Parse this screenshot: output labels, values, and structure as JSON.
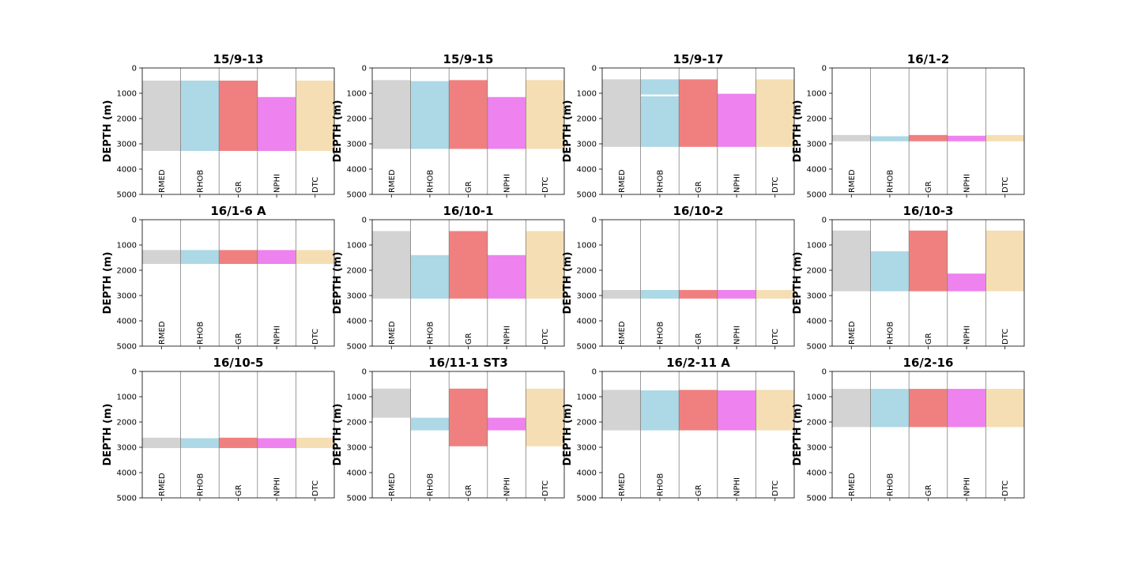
{
  "chart_data": {
    "type": "bar",
    "ylabel": "DEPTH (m)",
    "ylim": [
      5000,
      0
    ],
    "yticks": [
      0,
      1000,
      2000,
      3000,
      4000,
      5000
    ],
    "curves": [
      "RMED",
      "RHOB",
      "GR",
      "NPHI",
      "DTC"
    ],
    "colors": {
      "RMED": "#d3d3d3",
      "RHOB": "#add8e6",
      "GR": "#f08080",
      "NPHI": "#ee82ee",
      "DTC": "#f5deb3"
    },
    "wells": [
      {
        "title": "15/9-13",
        "ranges": {
          "RMED": [
            [
              500,
              3280
            ]
          ],
          "RHOB": [
            [
              500,
              3280
            ]
          ],
          "GR": [
            [
              500,
              3280
            ]
          ],
          "NPHI": [
            [
              1150,
              3280
            ]
          ],
          "DTC": [
            [
              500,
              3280
            ]
          ]
        }
      },
      {
        "title": "15/9-15",
        "ranges": {
          "RMED": [
            [
              480,
              3200
            ]
          ],
          "RHOB": [
            [
              520,
              3200
            ]
          ],
          "GR": [
            [
              480,
              3200
            ]
          ],
          "NPHI": [
            [
              1150,
              3200
            ]
          ],
          "DTC": [
            [
              480,
              3200
            ]
          ]
        }
      },
      {
        "title": "15/9-17",
        "ranges": {
          "RMED": [
            [
              450,
              3120
            ]
          ],
          "RHOB": [
            [
              450,
              1050
            ],
            [
              1120,
              3120
            ]
          ],
          "GR": [
            [
              450,
              3120
            ]
          ],
          "NPHI": [
            [
              1020,
              3120
            ]
          ],
          "DTC": [
            [
              450,
              3120
            ]
          ]
        }
      },
      {
        "title": "16/1-2",
        "ranges": {
          "RMED": [
            [
              2650,
              2900
            ]
          ],
          "RHOB": [
            [
              2700,
              2900
            ]
          ],
          "GR": [
            [
              2650,
              2900
            ]
          ],
          "NPHI": [
            [
              2680,
              2900
            ]
          ],
          "DTC": [
            [
              2650,
              2900
            ]
          ]
        }
      },
      {
        "title": "16/1-6 A",
        "ranges": {
          "RMED": [
            [
              1200,
              1750
            ]
          ],
          "RHOB": [
            [
              1200,
              1750
            ]
          ],
          "GR": [
            [
              1200,
              1750
            ]
          ],
          "NPHI": [
            [
              1200,
              1750
            ]
          ],
          "DTC": [
            [
              1200,
              1750
            ]
          ]
        }
      },
      {
        "title": "16/10-1",
        "ranges": {
          "RMED": [
            [
              450,
              3120
            ]
          ],
          "RHOB": [
            [
              1400,
              3120
            ]
          ],
          "GR": [
            [
              450,
              3120
            ]
          ],
          "NPHI": [
            [
              1400,
              3120
            ]
          ],
          "DTC": [
            [
              450,
              3120
            ]
          ]
        }
      },
      {
        "title": "16/10-2",
        "ranges": {
          "RMED": [
            [
              2780,
              3120
            ]
          ],
          "RHOB": [
            [
              2780,
              3120
            ]
          ],
          "GR": [
            [
              2780,
              3120
            ]
          ],
          "NPHI": [
            [
              2780,
              3120
            ]
          ],
          "DTC": [
            [
              2780,
              3120
            ]
          ]
        }
      },
      {
        "title": "16/10-3",
        "ranges": {
          "RMED": [
            [
              430,
              2830
            ]
          ],
          "RHOB": [
            [
              1250,
              2830
            ]
          ],
          "GR": [
            [
              430,
              2830
            ]
          ],
          "NPHI": [
            [
              2130,
              2830
            ]
          ],
          "DTC": [
            [
              430,
              2830
            ]
          ]
        }
      },
      {
        "title": "16/10-5",
        "ranges": {
          "RMED": [
            [
              2620,
              3030
            ]
          ],
          "RHOB": [
            [
              2640,
              3030
            ]
          ],
          "GR": [
            [
              2620,
              3030
            ]
          ],
          "NPHI": [
            [
              2640,
              3030
            ]
          ],
          "DTC": [
            [
              2620,
              3030
            ]
          ]
        }
      },
      {
        "title": "16/11-1 ST3",
        "ranges": {
          "RMED": [
            [
              680,
              1830
            ]
          ],
          "RHOB": [
            [
              1830,
              2330
            ]
          ],
          "GR": [
            [
              680,
              2960
            ]
          ],
          "NPHI": [
            [
              1830,
              2330
            ]
          ],
          "DTC": [
            [
              680,
              2960
            ]
          ]
        }
      },
      {
        "title": "16/2-11 A",
        "ranges": {
          "RMED": [
            [
              730,
              2330
            ]
          ],
          "RHOB": [
            [
              750,
              2330
            ]
          ],
          "GR": [
            [
              730,
              2330
            ]
          ],
          "NPHI": [
            [
              750,
              2330
            ]
          ],
          "DTC": [
            [
              730,
              2330
            ]
          ]
        }
      },
      {
        "title": "16/2-16",
        "ranges": {
          "RMED": [
            [
              690,
              2200
            ]
          ],
          "RHOB": [
            [
              690,
              2200
            ]
          ],
          "GR": [
            [
              690,
              2200
            ]
          ],
          "NPHI": [
            [
              690,
              2200
            ]
          ],
          "DTC": [
            [
              690,
              2200
            ]
          ]
        }
      }
    ]
  }
}
